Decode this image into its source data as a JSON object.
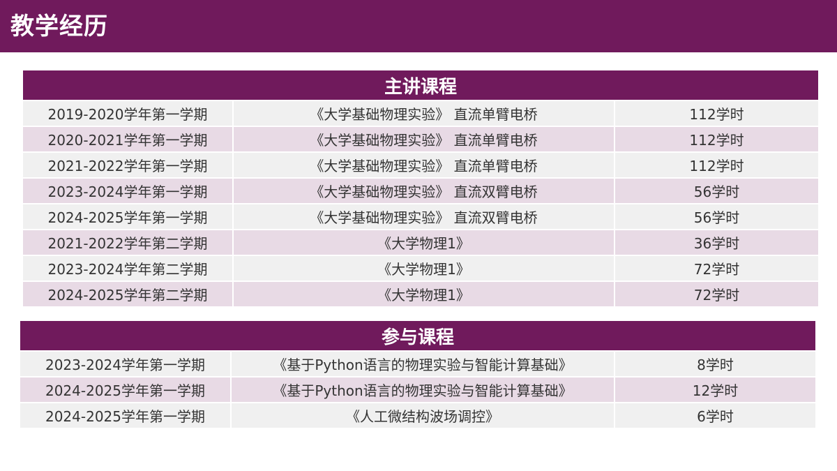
{
  "header": {
    "title": "教学经历"
  },
  "colors": {
    "brand": "#701a5c",
    "row_light": "#f0f0f0",
    "row_pink": "#e8dae5"
  },
  "main_courses": {
    "heading": "主讲课程",
    "rows": [
      {
        "term": "2019-2020学年第一学期",
        "course": "《大学基础物理实验》 直流单臂电桥",
        "hours": "112学时"
      },
      {
        "term": "2020-2021学年第一学期",
        "course": "《大学基础物理实验》 直流单臂电桥",
        "hours": "112学时"
      },
      {
        "term": "2021-2022学年第一学期",
        "course": "《大学基础物理实验》 直流单臂电桥",
        "hours": "112学时"
      },
      {
        "term": "2023-2024学年第一学期",
        "course": "《大学基础物理实验》 直流双臂电桥",
        "hours": "56学时"
      },
      {
        "term": "2024-2025学年第一学期",
        "course": "《大学基础物理实验》 直流双臂电桥",
        "hours": "56学时"
      },
      {
        "term": "2021-2022学年第二学期",
        "course": "《大学物理1》",
        "hours": "36学时"
      },
      {
        "term": "2023-2024学年第二学期",
        "course": "《大学物理1》",
        "hours": "72学时"
      },
      {
        "term": "2024-2025学年第二学期",
        "course": "《大学物理1》",
        "hours": "72学时"
      }
    ]
  },
  "participating_courses": {
    "heading": "参与课程",
    "rows": [
      {
        "term": "2023-2024学年第一学期",
        "course": "《基于Python语言的物理实验与智能计算基础》",
        "hours": "8学时"
      },
      {
        "term": "2024-2025学年第一学期",
        "course": "《基于Python语言的物理实验与智能计算基础》",
        "hours": "12学时"
      },
      {
        "term": "2024-2025学年第一学期",
        "course": "《人工微结构波场调控》",
        "hours": "6学时"
      }
    ]
  }
}
